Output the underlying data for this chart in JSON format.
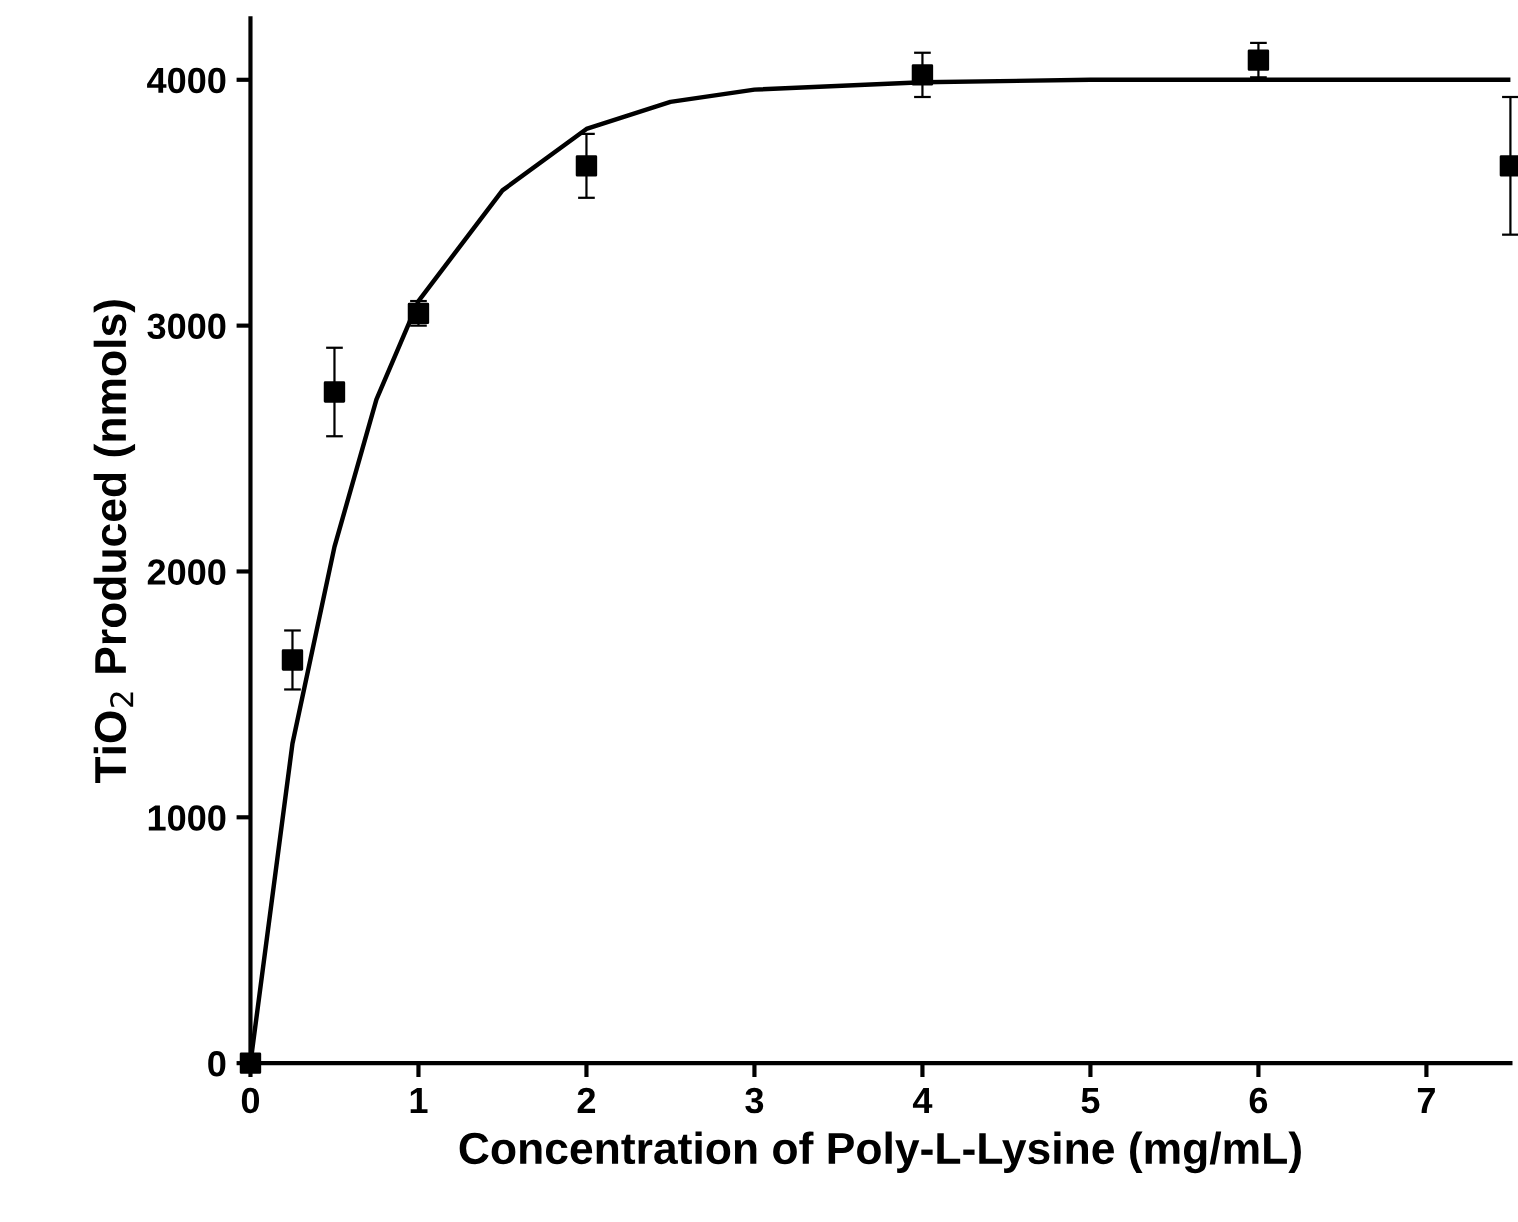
{
  "chart_data": {
    "type": "scatter",
    "xlabel": "Concentration of Poly-L-Lysine (mg/mL)",
    "ylabel": "TiO$_{2}$ Produced (nmols)",
    "xlim": [
      0,
      7.5
    ],
    "ylim": [
      0,
      4250
    ],
    "xticks": [
      0,
      1,
      2,
      3,
      4,
      5,
      6,
      7
    ],
    "yticks": [
      0,
      1000,
      2000,
      3000,
      4000
    ],
    "grid": false,
    "legend": false,
    "series": [
      {
        "color": "#000000",
        "marker": "square",
        "x": [
          0,
          0.25,
          0.5,
          1,
          2,
          4,
          6,
          7.5
        ],
        "values": [
          0,
          1640,
          2730,
          3050,
          3650,
          4020,
          4080,
          3650
        ],
        "errors": [
          null,
          120,
          180,
          50,
          130,
          90,
          70,
          280
        ]
      },
      {
        "type": "line",
        "color": "#000000",
        "marker": "none",
        "line_style": "solid",
        "x": [
          0,
          0.25,
          0.5,
          0.75,
          1,
          1.5,
          2,
          2.5,
          3,
          4,
          5,
          6,
          7.5
        ],
        "values": [
          0,
          1300,
          2100,
          2700,
          3100,
          3550,
          3800,
          3910,
          3960,
          3990,
          4000,
          4000,
          4000
        ]
      }
    ]
  }
}
